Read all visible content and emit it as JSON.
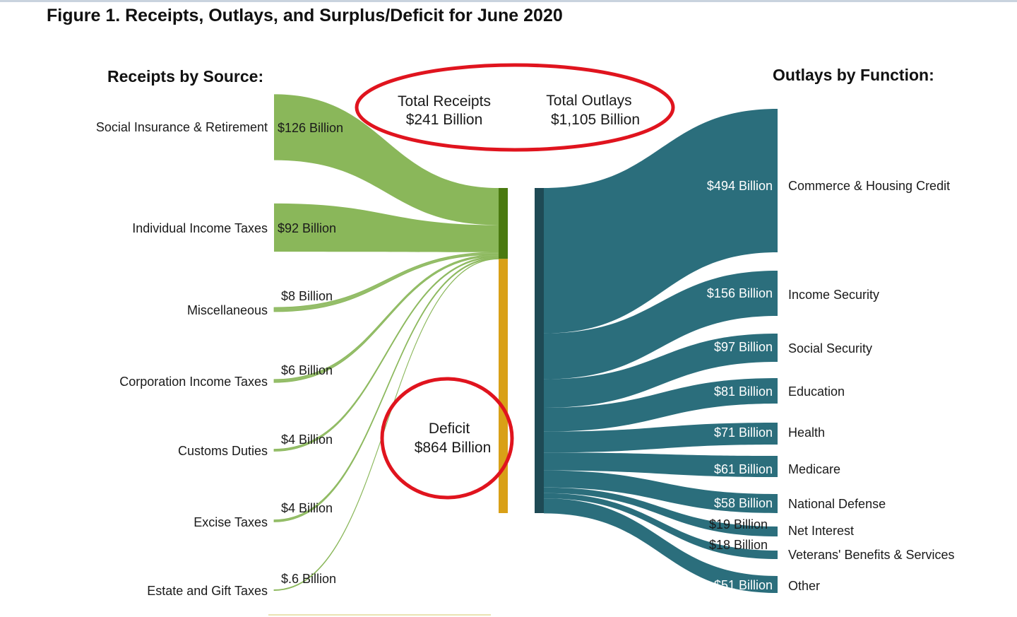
{
  "title": "Figure 1. Receipts, Outlays, and Surplus/Deficit for June 2020",
  "receipts_header": "Receipts by Source:",
  "outlays_header": "Outlays by Function:",
  "totals": {
    "receipts_label": "Total Receipts",
    "receipts_value": "$241 Billion",
    "outlays_label": "Total Outlays",
    "outlays_value": "$1,105 Billion"
  },
  "deficit": {
    "label": "Deficit",
    "value": "$864 Billion"
  },
  "colors": {
    "receipt_flow": "#8ab75a",
    "receipt_bar": "#4a7a10",
    "deficit_bar": "#d9a017",
    "outlay_flow": "#2b6e7c",
    "outlay_bar": "#1e4a55",
    "highlight_circle": "#e0141e"
  },
  "chart_data": {
    "type": "sankey",
    "units": "Billion dollars",
    "receipts": [
      {
        "name": "Social Insurance & Retirement",
        "value": 126,
        "label": "$126 Billion"
      },
      {
        "name": "Individual Income Taxes",
        "value": 92,
        "label": "$92 Billion"
      },
      {
        "name": "Miscellaneous",
        "value": 8,
        "label": "$8 Billion"
      },
      {
        "name": "Corporation Income Taxes",
        "value": 6,
        "label": "$6 Billion"
      },
      {
        "name": "Customs Duties",
        "value": 4,
        "label": "$4 Billion"
      },
      {
        "name": "Excise Taxes",
        "value": 4,
        "label": "$4 Billion"
      },
      {
        "name": "Estate and Gift Taxes",
        "value": 0.6,
        "label": "$.6 Billion"
      }
    ],
    "outlays": [
      {
        "name": "Commerce & Housing Credit",
        "value": 494,
        "label": "$494 Billion"
      },
      {
        "name": "Income Security",
        "value": 156,
        "label": "$156 Billion"
      },
      {
        "name": "Social Security",
        "value": 97,
        "label": "$97 Billion"
      },
      {
        "name": "Education",
        "value": 81,
        "label": "$81 Billion"
      },
      {
        "name": "Health",
        "value": 71,
        "label": "$71 Billion"
      },
      {
        "name": "Medicare",
        "value": 61,
        "label": "$61 Billion"
      },
      {
        "name": "National Defense",
        "value": 58,
        "label": "$58 Billion"
      },
      {
        "name": "Net Interest",
        "value": 19,
        "label": "$19 Billion"
      },
      {
        "name": "Veterans' Benefits & Services",
        "value": 18,
        "label": "$18 Billion"
      },
      {
        "name": "Other",
        "value": 51,
        "label": "$51 Billion"
      }
    ],
    "total_receipts": 241,
    "total_outlays": 1105,
    "deficit": 864
  }
}
